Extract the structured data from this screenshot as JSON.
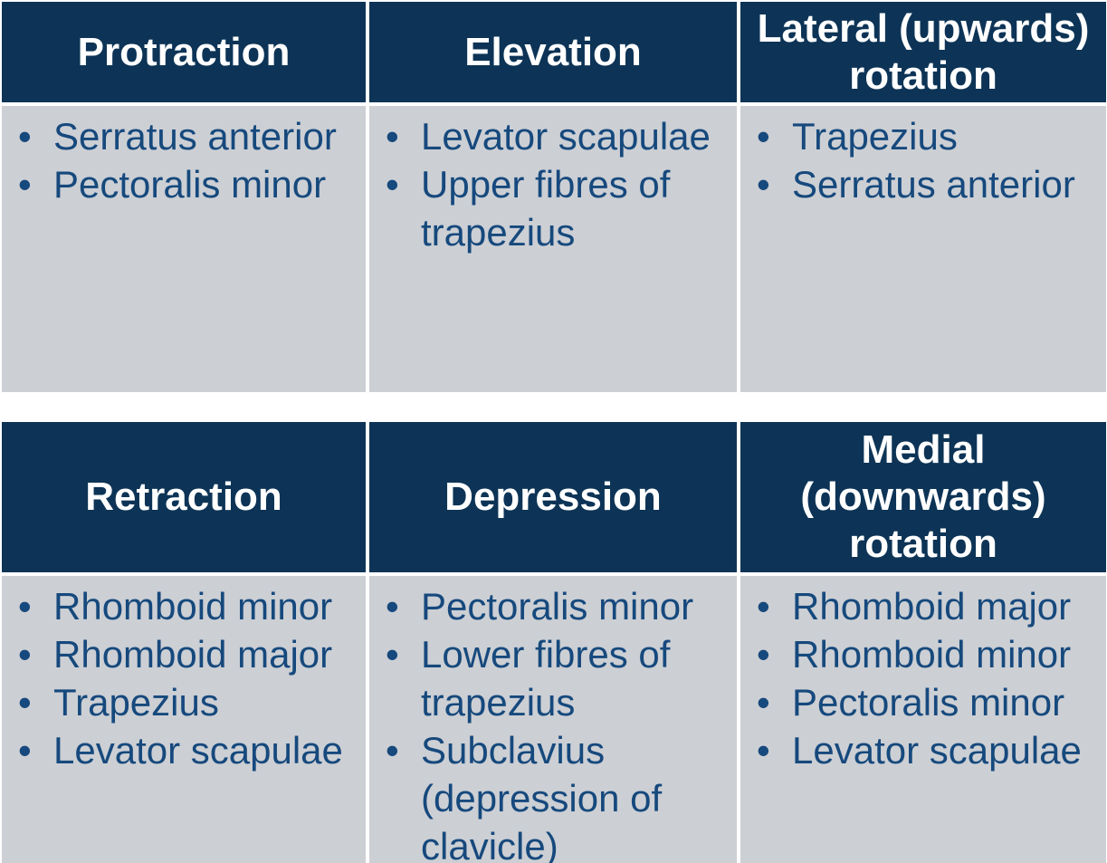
{
  "ui": {
    "bullet": "•"
  },
  "colors": {
    "header_bg": "#0d3456",
    "header_text": "#ffffff",
    "body_bg": "#cccfd4",
    "body_text": "#16497d",
    "grid": "#ffffff"
  },
  "tables": [
    {
      "headers": [
        "Protraction",
        "Elevation",
        "Lateral (upwards)\nrotation"
      ],
      "columns": [
        {
          "items": [
            "Serratus anterior",
            "Pectoralis minor"
          ]
        },
        {
          "items": [
            "Levator scapulae",
            "Upper fibres of\ntrapezius"
          ]
        },
        {
          "items": [
            "Trapezius",
            "Serratus anterior"
          ]
        }
      ]
    },
    {
      "headers": [
        "Retraction",
        "Depression",
        "Medial\n(downwards)\nrotation"
      ],
      "columns": [
        {
          "items": [
            "Rhomboid minor",
            "Rhomboid major",
            "Trapezius",
            "Levator scapulae"
          ]
        },
        {
          "items": [
            "Pectoralis minor",
            "Lower fibres of\ntrapezius",
            "Subclavius\n(depression of\nclavicle)"
          ]
        },
        {
          "items": [
            "Rhomboid major",
            "Rhomboid minor",
            "Pectoralis minor",
            "Levator scapulae"
          ]
        }
      ]
    }
  ]
}
